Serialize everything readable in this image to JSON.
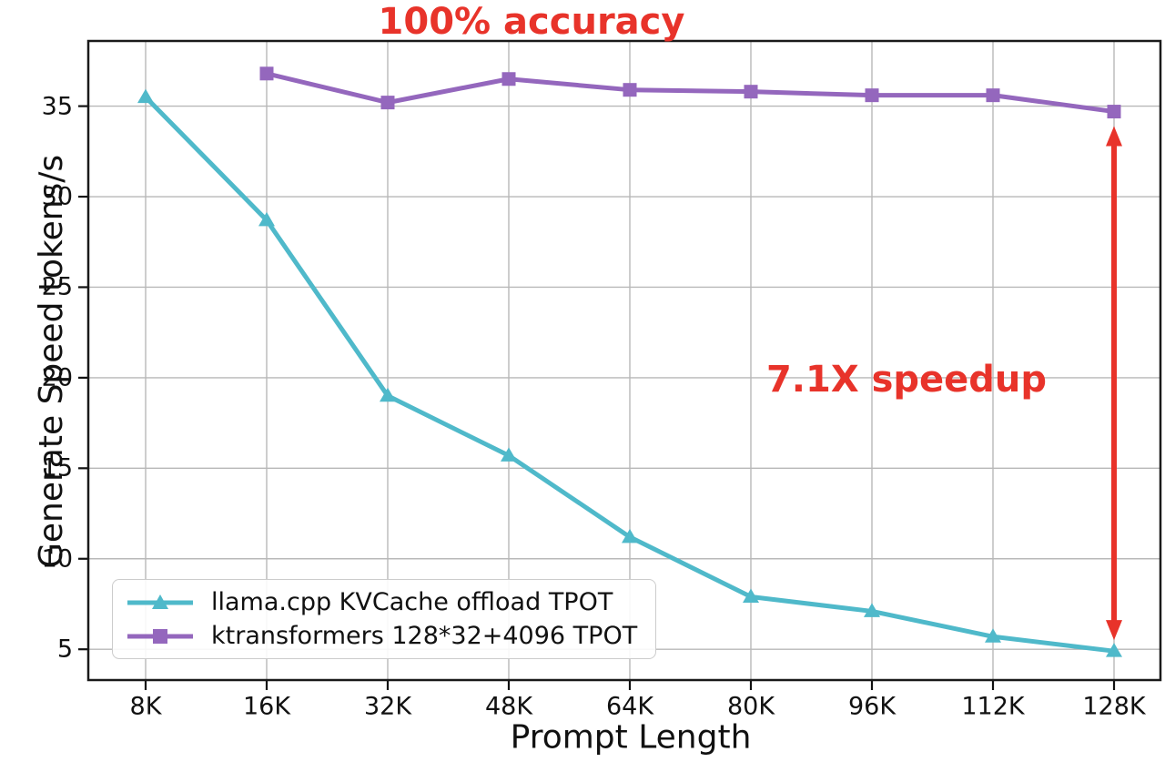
{
  "chart_data": {
    "type": "line",
    "title": "100% accuracy",
    "xlabel": "Prompt Length",
    "ylabel": "Generate Speed tokens/s",
    "categories": [
      "8K",
      "16K",
      "32K",
      "48K",
      "64K",
      "80K",
      "96K",
      "112K",
      "128K"
    ],
    "yticks": [
      5,
      10,
      15,
      20,
      25,
      30,
      35
    ],
    "ylim": [
      3.3,
      38.6
    ],
    "grid": true,
    "grid_color": "#b8b8b8",
    "legend_position": "lower-left",
    "series": [
      {
        "name": "llama.cpp KVCache offload TPOT",
        "color": "#4fb9ca",
        "marker": "triangle",
        "values": [
          35.5,
          28.7,
          19.0,
          15.7,
          11.2,
          7.9,
          7.1,
          5.7,
          4.9
        ]
      },
      {
        "name": "ktransformers 128*32+4096 TPOT",
        "color": "#9467bd",
        "marker": "square",
        "values": [
          null,
          36.8,
          35.2,
          36.5,
          35.9,
          35.8,
          35.6,
          35.6,
          34.7
        ]
      }
    ],
    "annotations": {
      "title_color": "#e8332a",
      "speedup_label": "7.1X speedup",
      "speedup_color": "#e8332a",
      "arrow_color": "#e8332a",
      "arrow_x_category": "128K"
    }
  }
}
